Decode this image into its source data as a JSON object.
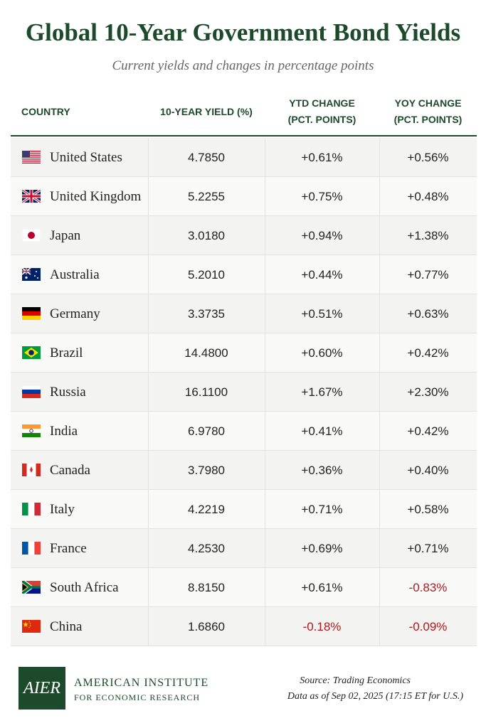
{
  "header": {
    "title": "Global 10-Year Government Bond Yields",
    "subtitle": "Current yields and changes in percentage points"
  },
  "table": {
    "columns": [
      [
        "COUNTRY"
      ],
      [
        "10-YEAR YIELD (%)"
      ],
      [
        "YTD CHANGE",
        "(PCT. POINTS)"
      ],
      [
        "YOY CHANGE",
        "(PCT. POINTS)"
      ]
    ],
    "rows": [
      [
        "United States",
        "4.7850",
        "+0.61%",
        "+0.56%"
      ],
      [
        "United Kingdom",
        "5.2255",
        "+0.75%",
        "+0.48%"
      ],
      [
        "Japan",
        "3.0180",
        "+0.94%",
        "+1.38%"
      ],
      [
        "Australia",
        "5.2010",
        "+0.44%",
        "+0.77%"
      ],
      [
        "Germany",
        "3.3735",
        "+0.51%",
        "+0.63%"
      ],
      [
        "Brazil",
        "14.4800",
        "+0.60%",
        "+0.42%"
      ],
      [
        "Russia",
        "16.1100",
        "+1.67%",
        "+2.30%"
      ],
      [
        "India",
        "6.9780",
        "+0.41%",
        "+0.42%"
      ],
      [
        "Canada",
        "3.7980",
        "+0.36%",
        "+0.40%"
      ],
      [
        "Italy",
        "4.2219",
        "+0.71%",
        "+0.58%"
      ],
      [
        "France",
        "4.2530",
        "+0.69%",
        "+0.71%"
      ],
      [
        "South Africa",
        "8.8150",
        "+0.61%",
        "-0.83%"
      ],
      [
        "China",
        "1.6860",
        "-0.18%",
        "-0.09%"
      ]
    ]
  },
  "footer": {
    "logo": "AIER",
    "org": [
      "AMERICAN INSTITUTE",
      "FOR ECONOMIC RESEARCH"
    ],
    "source": "Source: Trading Economics",
    "note": "Data as of Sep 02, 2025 (17:15 ET for U.S.)"
  }
}
